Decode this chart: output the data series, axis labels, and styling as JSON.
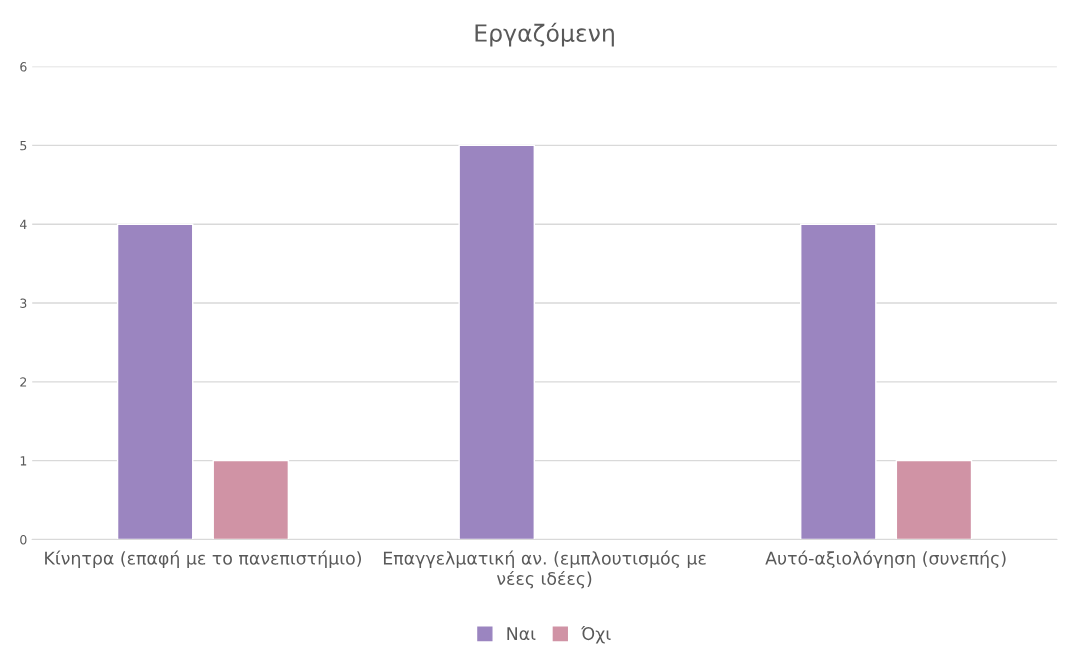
{
  "chart_data": {
    "type": "bar",
    "title": "Εργαζόμενη",
    "categories": [
      "Κίνητρα (επαφή με το πανεπιστήμιο)",
      "Επαγγελματική αν. (εμπλουτισμός με νέες ιδέες)",
      "Αυτό-αξιολόγηση (συνεπής)"
    ],
    "series": [
      {
        "name": "Ναι",
        "color": "#9b85c0",
        "values": [
          4,
          5,
          4
        ]
      },
      {
        "name": "Όχι",
        "color": "#d093a5",
        "values": [
          1,
          null,
          1
        ]
      }
    ],
    "ylim": [
      0,
      6
    ],
    "yticks": [
      0,
      1,
      2,
      3,
      4,
      5,
      6
    ],
    "grid": "y",
    "legend": "bottom"
  }
}
